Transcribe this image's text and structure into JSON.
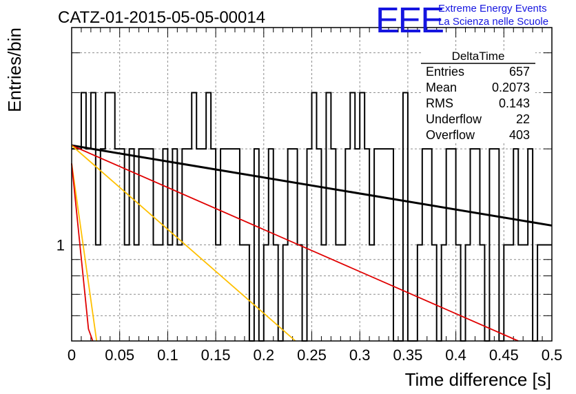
{
  "chart_data": {
    "type": "histogram",
    "title": "CATZ-01-2015-05-05-00014",
    "xlabel": "Time difference [s]",
    "ylabel": "Entries/bin",
    "xlim": [
      0,
      0.5
    ],
    "ylim": [
      0.5,
      4.8
    ],
    "yscale": "log",
    "grid": true,
    "xticks": [
      "0",
      "0.05",
      "0.1",
      "0.15",
      "0.2",
      "0.25",
      "0.3",
      "0.35",
      "0.4",
      "0.45",
      "0.5"
    ],
    "yticks": [
      "1"
    ],
    "bin_width": 0.005,
    "histogram_counts": [
      2,
      2,
      3,
      2,
      3,
      1,
      2,
      3,
      3,
      2,
      2,
      1,
      2,
      1,
      2,
      2,
      2,
      1,
      1,
      2,
      1,
      2,
      1,
      2,
      2,
      3,
      2,
      2,
      3,
      2,
      1,
      2,
      2,
      2,
      2,
      1,
      1,
      0,
      2,
      0,
      1,
      2,
      1,
      0,
      1,
      2,
      2,
      1,
      0,
      2,
      3,
      2,
      1,
      3,
      2,
      1,
      1,
      2,
      3,
      2,
      3,
      2,
      1,
      2,
      2,
      2,
      2,
      0,
      0,
      3,
      0,
      0,
      1,
      2,
      2,
      1,
      0,
      1,
      2,
      2,
      1,
      0,
      1,
      2,
      2,
      1,
      0,
      2,
      2,
      0,
      1,
      1,
      2,
      1,
      1,
      2,
      0,
      1,
      1,
      1
    ],
    "fit_lines": [
      {
        "color": "#000000",
        "x": [
          0.0,
          0.5
        ],
        "y": [
          2.05,
          1.15
        ]
      },
      {
        "color": "#e00000",
        "x": [
          0.0,
          0.465
        ],
        "y": [
          2.05,
          0.5
        ]
      },
      {
        "color": "#ffc000",
        "x": [
          0.0,
          0.233
        ],
        "y": [
          2.05,
          0.5
        ]
      },
      {
        "color": "#ffc000",
        "x": [
          0.0,
          0.026
        ],
        "y": [
          1.8,
          0.5
        ]
      },
      {
        "color": "#e00000",
        "x": [
          0.0,
          0.0175,
          0.022
        ],
        "y": [
          1.8,
          0.545,
          0.5
        ]
      }
    ],
    "stats_box": {
      "title": "DeltaTime",
      "rows": [
        {
          "label": "Entries",
          "value": "657"
        },
        {
          "label": "Mean",
          "value": "0.2073"
        },
        {
          "label": "RMS",
          "value": "0.143"
        },
        {
          "label": "Underflow",
          "value": "22"
        },
        {
          "label": "Overflow",
          "value": "403"
        }
      ]
    }
  },
  "logo": {
    "text": "EEE",
    "line1": "Extreme Energy Events",
    "line2": "La Scienza nelle Scuole"
  }
}
